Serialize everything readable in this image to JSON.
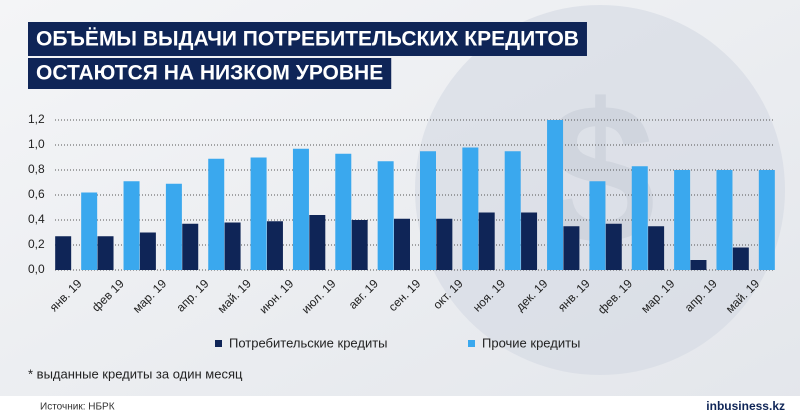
{
  "chart_data": {
    "type": "bar",
    "title": [
      "ОБЪЁМЫ ВЫДАЧИ ПОТРЕБИТЕЛЬСКИХ КРЕДИТОВ",
      "ОСТАЮТСЯ НА НИЗКОМ УРОВНЕ"
    ],
    "categories": [
      "янв. 19",
      "фев 19",
      "мар. 19",
      "апр. 19",
      "май. 19",
      "июн. 19",
      "июл. 19",
      "авг. 19",
      "сен. 19",
      "окт. 19",
      "ноя. 19",
      "дек. 19",
      "янв. 19",
      "фев. 19",
      "мар. 19",
      "апр. 19",
      "май. 19"
    ],
    "series": [
      {
        "name": "Потребительские кредиты",
        "color": "#0f2557",
        "values": [
          0.27,
          0.27,
          0.3,
          0.37,
          0.38,
          0.39,
          0.44,
          0.4,
          0.41,
          0.41,
          0.46,
          0.46,
          0.35,
          0.37,
          0.35,
          0.08,
          0.18
        ]
      },
      {
        "name": "Прочие кредиты",
        "color": "#3aa8ee",
        "values": [
          0.62,
          0.71,
          0.69,
          0.89,
          0.9,
          0.97,
          0.93,
          0.87,
          0.95,
          0.98,
          0.95,
          1.2,
          0.71,
          0.83,
          0.8,
          0.8,
          0.8
        ]
      }
    ],
    "ylim": [
      0,
      1.2
    ],
    "yticks": [
      {
        "value": 0,
        "label": "0,0"
      },
      {
        "value": 0.2,
        "label": "0,2"
      },
      {
        "value": 0.4,
        "label": "0,4"
      },
      {
        "value": 0.6,
        "label": "0,6"
      },
      {
        "value": 0.8,
        "label": "0,8"
      },
      {
        "value": 1.0,
        "label": "1,0"
      },
      {
        "value": 1.2,
        "label": "1,2"
      }
    ],
    "grid": true,
    "footnote": "* выданные кредиты за один месяц",
    "source": "Источник: НБРК",
    "brand": "inbusiness.kz"
  }
}
